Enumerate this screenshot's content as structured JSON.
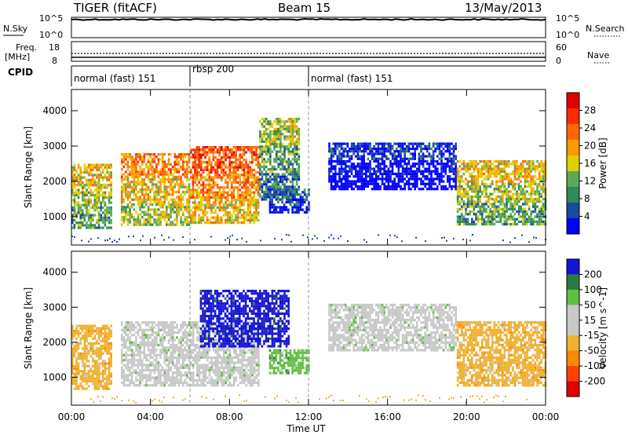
{
  "header": {
    "title": "TIGER (fitACF)",
    "beam": "Beam 15",
    "date": "13/May/2013"
  },
  "top_panels": {
    "nsky_label": "N.Sky",
    "nsky_ticks": [
      "10^5",
      "10^0"
    ],
    "nsearch_label": "N.Search",
    "nsearch_ticks": [
      "10^5",
      "10^0"
    ],
    "freq_label": "Freq.",
    "freq_unit": "[MHz]",
    "freq_ticks": [
      "18",
      "8"
    ],
    "nave_label": "Nave",
    "nave_ticks": [
      "60",
      "0"
    ],
    "cpid_label": "CPID"
  },
  "cpid_segments": [
    {
      "label": "normal (fast) 151",
      "start_h": 0
    },
    {
      "label": "rbsp 200",
      "start_h": 6
    },
    {
      "label": "normal (fast) 151",
      "start_h": 12
    }
  ],
  "colors": {
    "power": [
      "#0000ff",
      "#1a4aa0",
      "#2e8b57",
      "#5aaa5a",
      "#e0d000",
      "#ff9900",
      "#ff6600",
      "#ff2a00",
      "#e00000"
    ],
    "velocity": [
      "#1414d4",
      "#2a7a4a",
      "#60c040",
      "#c8c8c8",
      "#c8c8c8",
      "#f0b030",
      "#ff8800",
      "#ff4000",
      "#e00000"
    ]
  },
  "chart_data": [
    {
      "type": "heatmap",
      "panel": "power",
      "ylabel": "Slant Range [km]",
      "xlabel": "",
      "x_ticks": [
        "00:00",
        "04:00",
        "08:00",
        "12:00",
        "16:00",
        "20:00",
        "00:00"
      ],
      "y_ticks": [
        "1000",
        "2000",
        "3000",
        "4000"
      ],
      "ylim": [
        200,
        4600
      ],
      "xlim_hours": [
        0,
        24
      ],
      "colorbar_title": "Power [dB]",
      "colorbar_ticks": [
        "4",
        "8",
        "12",
        "16",
        "20",
        "24",
        "28"
      ],
      "regions": [
        {
          "t0": 0.0,
          "t1": 2.0,
          "r0": 700,
          "r1": 2500,
          "peak_db": 22
        },
        {
          "t0": 2.5,
          "t1": 6.0,
          "r0": 800,
          "r1": 2800,
          "peak_db": 26
        },
        {
          "t0": 6.0,
          "t1": 9.5,
          "r0": 800,
          "r1": 3000,
          "peak_db": 30
        },
        {
          "t0": 9.5,
          "t1": 11.5,
          "r0": 1500,
          "r1": 3800,
          "peak_db": 20
        },
        {
          "t0": 10.0,
          "t1": 12.0,
          "r0": 1100,
          "r1": 1800,
          "peak_db": 10
        },
        {
          "t0": 13.0,
          "t1": 19.5,
          "r0": 1800,
          "r1": 3100,
          "peak_db": 8
        },
        {
          "t0": 19.5,
          "t1": 24.0,
          "r0": 800,
          "r1": 2600,
          "peak_db": 24
        }
      ]
    },
    {
      "type": "heatmap",
      "panel": "velocity",
      "ylabel": "Slant Range [km]",
      "xlabel": "Time UT",
      "x_ticks": [
        "00:00",
        "04:00",
        "08:00",
        "12:00",
        "16:00",
        "20:00",
        "00:00"
      ],
      "y_ticks": [
        "1000",
        "2000",
        "3000",
        "4000"
      ],
      "ylim": [
        200,
        4600
      ],
      "xlim_hours": [
        0,
        24
      ],
      "colorbar_title": "Velocity [m s^-1]",
      "colorbar_ticks": [
        "200",
        "100",
        "50",
        "15",
        "-15",
        "-50",
        "-100",
        "-200"
      ],
      "regions": [
        {
          "t0": 0.0,
          "t1": 2.0,
          "r0": 700,
          "r1": 2500,
          "vel": -20
        },
        {
          "t0": 2.5,
          "t1": 9.5,
          "r0": 800,
          "r1": 2600,
          "vel": 0
        },
        {
          "t0": 6.5,
          "t1": 11.0,
          "r0": 1900,
          "r1": 3500,
          "vel": 200
        },
        {
          "t0": 10.0,
          "t1": 12.0,
          "r0": 1100,
          "r1": 1800,
          "vel": 50
        },
        {
          "t0": 13.0,
          "t1": 19.5,
          "r0": 1800,
          "r1": 3100,
          "vel": 0
        },
        {
          "t0": 19.5,
          "t1": 24.0,
          "r0": 800,
          "r1": 2600,
          "vel": -30
        }
      ]
    }
  ]
}
